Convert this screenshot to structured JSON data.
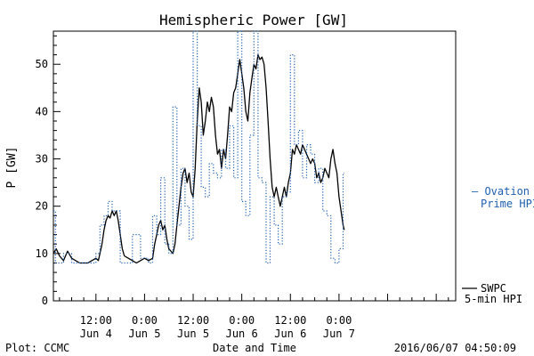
{
  "footer": {
    "left": "Plot: CCMC",
    "center": "Date and Time",
    "right": "2016/06/07 04:50:09"
  },
  "chart_data": {
    "type": "line",
    "title": "Hemispheric Power [GW]",
    "xlabel": "Date and Time",
    "ylabel": "P [GW]",
    "x_unit": "hours since 2016-06-03 00:00",
    "xlim": [
      1.5,
      100.8
    ],
    "ylim": [
      0,
      57
    ],
    "yticks": [
      0,
      10,
      20,
      30,
      40,
      50
    ],
    "xticks": [
      {
        "x": 12,
        "label1": "12:00",
        "label2": "Jun 4"
      },
      {
        "x": 24,
        "label1": "0:00",
        "label2": "Jun 5"
      },
      {
        "x": 36,
        "label1": "12:00",
        "label2": "Jun 5"
      },
      {
        "x": 48,
        "label1": "0:00",
        "label2": "Jun 6"
      },
      {
        "x": 60,
        "label1": "12:00",
        "label2": "Jun 6"
      },
      {
        "x": 72,
        "label1": "0:00",
        "label2": "Jun 7"
      }
    ],
    "legend": [
      {
        "name": "— Ovation",
        "name2": "Prime HPI",
        "color": "#1f5fb0",
        "style": "dotted"
      },
      {
        "name": "SWPC",
        "name2": "5-min HPI",
        "color": "#000000",
        "style": "solid"
      }
    ],
    "series": [
      {
        "name": "SWPC 5-min HPI",
        "color": "#000000",
        "style": "solid",
        "points": [
          [
            1.5,
            10
          ],
          [
            2.2,
            11
          ],
          [
            3,
            9.5
          ],
          [
            4,
            8.5
          ],
          [
            5,
            10.5
          ],
          [
            6,
            9
          ],
          [
            7,
            8.5
          ],
          [
            8,
            8
          ],
          [
            9,
            8
          ],
          [
            10,
            8
          ],
          [
            11,
            8.5
          ],
          [
            12,
            9
          ],
          [
            12.6,
            8.5
          ],
          [
            13,
            10
          ],
          [
            13.5,
            12
          ],
          [
            14,
            15
          ],
          [
            14.5,
            17
          ],
          [
            15,
            18
          ],
          [
            15.5,
            17.5
          ],
          [
            16,
            19
          ],
          [
            16.5,
            18
          ],
          [
            17,
            19
          ],
          [
            17.5,
            17
          ],
          [
            18,
            14
          ],
          [
            18.5,
            11
          ],
          [
            19,
            9.5
          ],
          [
            20,
            9
          ],
          [
            21,
            8.5
          ],
          [
            22,
            8
          ],
          [
            23,
            8.5
          ],
          [
            24,
            9
          ],
          [
            25,
            8.5
          ],
          [
            26,
            9
          ],
          [
            26.5,
            12
          ],
          [
            27,
            14
          ],
          [
            27.5,
            16
          ],
          [
            28,
            17
          ],
          [
            28.5,
            15
          ],
          [
            29,
            16
          ],
          [
            29.5,
            13
          ],
          [
            30,
            11
          ],
          [
            31,
            10
          ],
          [
            31.5,
            12
          ],
          [
            32,
            16
          ],
          [
            32.5,
            20
          ],
          [
            33,
            24
          ],
          [
            33.5,
            27
          ],
          [
            34,
            28
          ],
          [
            34.5,
            25
          ],
          [
            35,
            27
          ],
          [
            35.5,
            23
          ],
          [
            36,
            22
          ],
          [
            36.5,
            28
          ],
          [
            37,
            38
          ],
          [
            37.5,
            45
          ],
          [
            38,
            42
          ],
          [
            38.5,
            35
          ],
          [
            39,
            38
          ],
          [
            39.5,
            42
          ],
          [
            40,
            40
          ],
          [
            40.5,
            43
          ],
          [
            41,
            41
          ],
          [
            41.5,
            35
          ],
          [
            42,
            31
          ],
          [
            42.5,
            32
          ],
          [
            43,
            28
          ],
          [
            43.5,
            32
          ],
          [
            44,
            30
          ],
          [
            44.5,
            35
          ],
          [
            45,
            41
          ],
          [
            45.5,
            40
          ],
          [
            46,
            44
          ],
          [
            46.5,
            45
          ],
          [
            47,
            48
          ],
          [
            47.5,
            51
          ],
          [
            48,
            48
          ],
          [
            48.5,
            45
          ],
          [
            49,
            40
          ],
          [
            49.5,
            38
          ],
          [
            50,
            44
          ],
          [
            50.5,
            47
          ],
          [
            51,
            50
          ],
          [
            51.5,
            49
          ],
          [
            52,
            52
          ],
          [
            52.5,
            51
          ],
          [
            53,
            51.5
          ],
          [
            53.5,
            50
          ],
          [
            54,
            45
          ],
          [
            54.5,
            38
          ],
          [
            55,
            30
          ],
          [
            55.5,
            24
          ],
          [
            56,
            22
          ],
          [
            56.5,
            24
          ],
          [
            57,
            22
          ],
          [
            57.5,
            20
          ],
          [
            58,
            22
          ],
          [
            58.5,
            24
          ],
          [
            59,
            22
          ],
          [
            59.5,
            25
          ],
          [
            60,
            27
          ],
          [
            60.5,
            32
          ],
          [
            61,
            31
          ],
          [
            61.5,
            33
          ],
          [
            62,
            32
          ],
          [
            62.5,
            31
          ],
          [
            63,
            33
          ],
          [
            63.5,
            32
          ],
          [
            64,
            31
          ],
          [
            64.5,
            30
          ],
          [
            65,
            29
          ],
          [
            65.5,
            30
          ],
          [
            66,
            29
          ],
          [
            66.5,
            26
          ],
          [
            67,
            27
          ],
          [
            67.5,
            25
          ],
          [
            68,
            26
          ],
          [
            68.5,
            28
          ],
          [
            69,
            27
          ],
          [
            69.5,
            26
          ],
          [
            70,
            30
          ],
          [
            70.5,
            32
          ],
          [
            71,
            29
          ],
          [
            71.5,
            27
          ],
          [
            72,
            22
          ],
          [
            72.5,
            19
          ],
          [
            73,
            16
          ],
          [
            73.3,
            15
          ]
        ]
      },
      {
        "name": "Ovation Prime HPI",
        "color": "#1f5fb0",
        "style": "dotted",
        "points": [
          [
            1.5,
            19
          ],
          [
            2,
            19
          ],
          [
            2,
            8
          ],
          [
            4,
            8
          ],
          [
            4,
            10
          ],
          [
            6,
            10
          ],
          [
            6,
            8
          ],
          [
            12,
            8
          ],
          [
            12,
            10
          ],
          [
            13,
            10
          ],
          [
            13,
            16
          ],
          [
            14,
            16
          ],
          [
            14,
            18
          ],
          [
            15,
            18
          ],
          [
            15,
            21
          ],
          [
            16,
            21
          ],
          [
            16,
            19
          ],
          [
            18,
            19
          ],
          [
            18,
            8
          ],
          [
            21,
            8
          ],
          [
            21,
            14
          ],
          [
            23,
            14
          ],
          [
            23,
            9
          ],
          [
            25,
            9
          ],
          [
            25,
            8
          ],
          [
            26,
            8
          ],
          [
            26,
            18
          ],
          [
            27,
            18
          ],
          [
            27,
            14
          ],
          [
            28,
            14
          ],
          [
            28,
            26
          ],
          [
            29,
            26
          ],
          [
            29,
            12
          ],
          [
            30,
            12
          ],
          [
            30,
            10
          ],
          [
            31,
            10
          ],
          [
            31,
            41
          ],
          [
            32,
            41
          ],
          [
            32,
            16
          ],
          [
            33,
            16
          ],
          [
            33,
            28
          ],
          [
            34,
            28
          ],
          [
            34,
            20
          ],
          [
            35,
            20
          ],
          [
            35,
            13
          ],
          [
            36,
            13
          ],
          [
            36,
            57
          ],
          [
            37,
            57
          ],
          [
            37,
            37
          ],
          [
            38,
            37
          ],
          [
            38,
            24
          ],
          [
            39,
            24
          ],
          [
            39,
            22
          ],
          [
            40,
            22
          ],
          [
            40,
            29
          ],
          [
            41,
            29
          ],
          [
            41,
            27
          ],
          [
            42,
            27
          ],
          [
            42,
            26
          ],
          [
            43,
            26
          ],
          [
            43,
            32
          ],
          [
            44,
            32
          ],
          [
            44,
            28
          ],
          [
            45,
            28
          ],
          [
            45,
            37
          ],
          [
            46,
            37
          ],
          [
            46,
            26
          ],
          [
            47,
            26
          ],
          [
            47,
            57
          ],
          [
            48,
            57
          ],
          [
            48,
            21
          ],
          [
            49,
            21
          ],
          [
            49,
            18
          ],
          [
            50,
            18
          ],
          [
            50,
            35
          ],
          [
            51,
            35
          ],
          [
            51,
            57
          ],
          [
            52,
            57
          ],
          [
            52,
            26
          ],
          [
            53,
            26
          ],
          [
            53,
            25
          ],
          [
            54,
            25
          ],
          [
            54,
            8
          ],
          [
            55,
            8
          ],
          [
            55,
            22
          ],
          [
            56,
            22
          ],
          [
            56,
            16
          ],
          [
            57,
            16
          ],
          [
            57,
            12
          ],
          [
            58,
            12
          ],
          [
            58,
            22
          ],
          [
            59,
            22
          ],
          [
            59,
            23
          ],
          [
            60,
            23
          ],
          [
            60,
            52
          ],
          [
            61,
            52
          ],
          [
            61,
            33
          ],
          [
            62,
            33
          ],
          [
            62,
            36
          ],
          [
            63,
            36
          ],
          [
            63,
            26
          ],
          [
            64,
            26
          ],
          [
            64,
            33
          ],
          [
            65,
            33
          ],
          [
            65,
            31
          ],
          [
            66,
            31
          ],
          [
            66,
            25
          ],
          [
            67,
            25
          ],
          [
            67,
            28
          ],
          [
            68,
            28
          ],
          [
            68,
            19
          ],
          [
            69,
            19
          ],
          [
            69,
            18
          ],
          [
            70,
            18
          ],
          [
            70,
            9
          ],
          [
            71,
            9
          ],
          [
            71,
            8
          ],
          [
            72,
            8
          ],
          [
            72,
            11
          ],
          [
            73,
            11
          ],
          [
            73,
            27
          ],
          [
            73.3,
            27
          ]
        ]
      }
    ]
  }
}
